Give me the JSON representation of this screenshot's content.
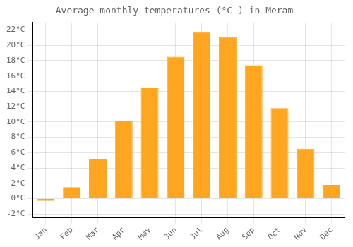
{
  "chart_data": {
    "type": "bar",
    "title": "Average monthly temperatures (°C ) in Meram",
    "categories": [
      "Jan",
      "Feb",
      "Mar",
      "Apr",
      "May",
      "Jun",
      "Jul",
      "Aug",
      "Sep",
      "Oct",
      "Nov",
      "Dec"
    ],
    "values": [
      -0.3,
      1.5,
      5.2,
      10.2,
      14.4,
      18.5,
      21.7,
      21.1,
      17.4,
      11.8,
      6.5,
      1.8
    ],
    "color": "#FFA620",
    "ylim": [
      -2.5,
      23
    ],
    "yticks": [
      {
        "value": -2,
        "label": "-2°C"
      },
      {
        "value": 0,
        "label": "0°C"
      },
      {
        "value": 2,
        "label": "2°C"
      },
      {
        "value": 4,
        "label": "4°C"
      },
      {
        "value": 6,
        "label": "6°C"
      },
      {
        "value": 8,
        "label": "8°C"
      },
      {
        "value": 10,
        "label": "10°C"
      },
      {
        "value": 12,
        "label": "12°C"
      },
      {
        "value": 14,
        "label": "14°C"
      },
      {
        "value": 16,
        "label": "16°C"
      },
      {
        "value": 18,
        "label": "18°C"
      },
      {
        "value": 20,
        "label": "20°C"
      },
      {
        "value": 22,
        "label": "22°C"
      }
    ],
    "grid": true
  }
}
